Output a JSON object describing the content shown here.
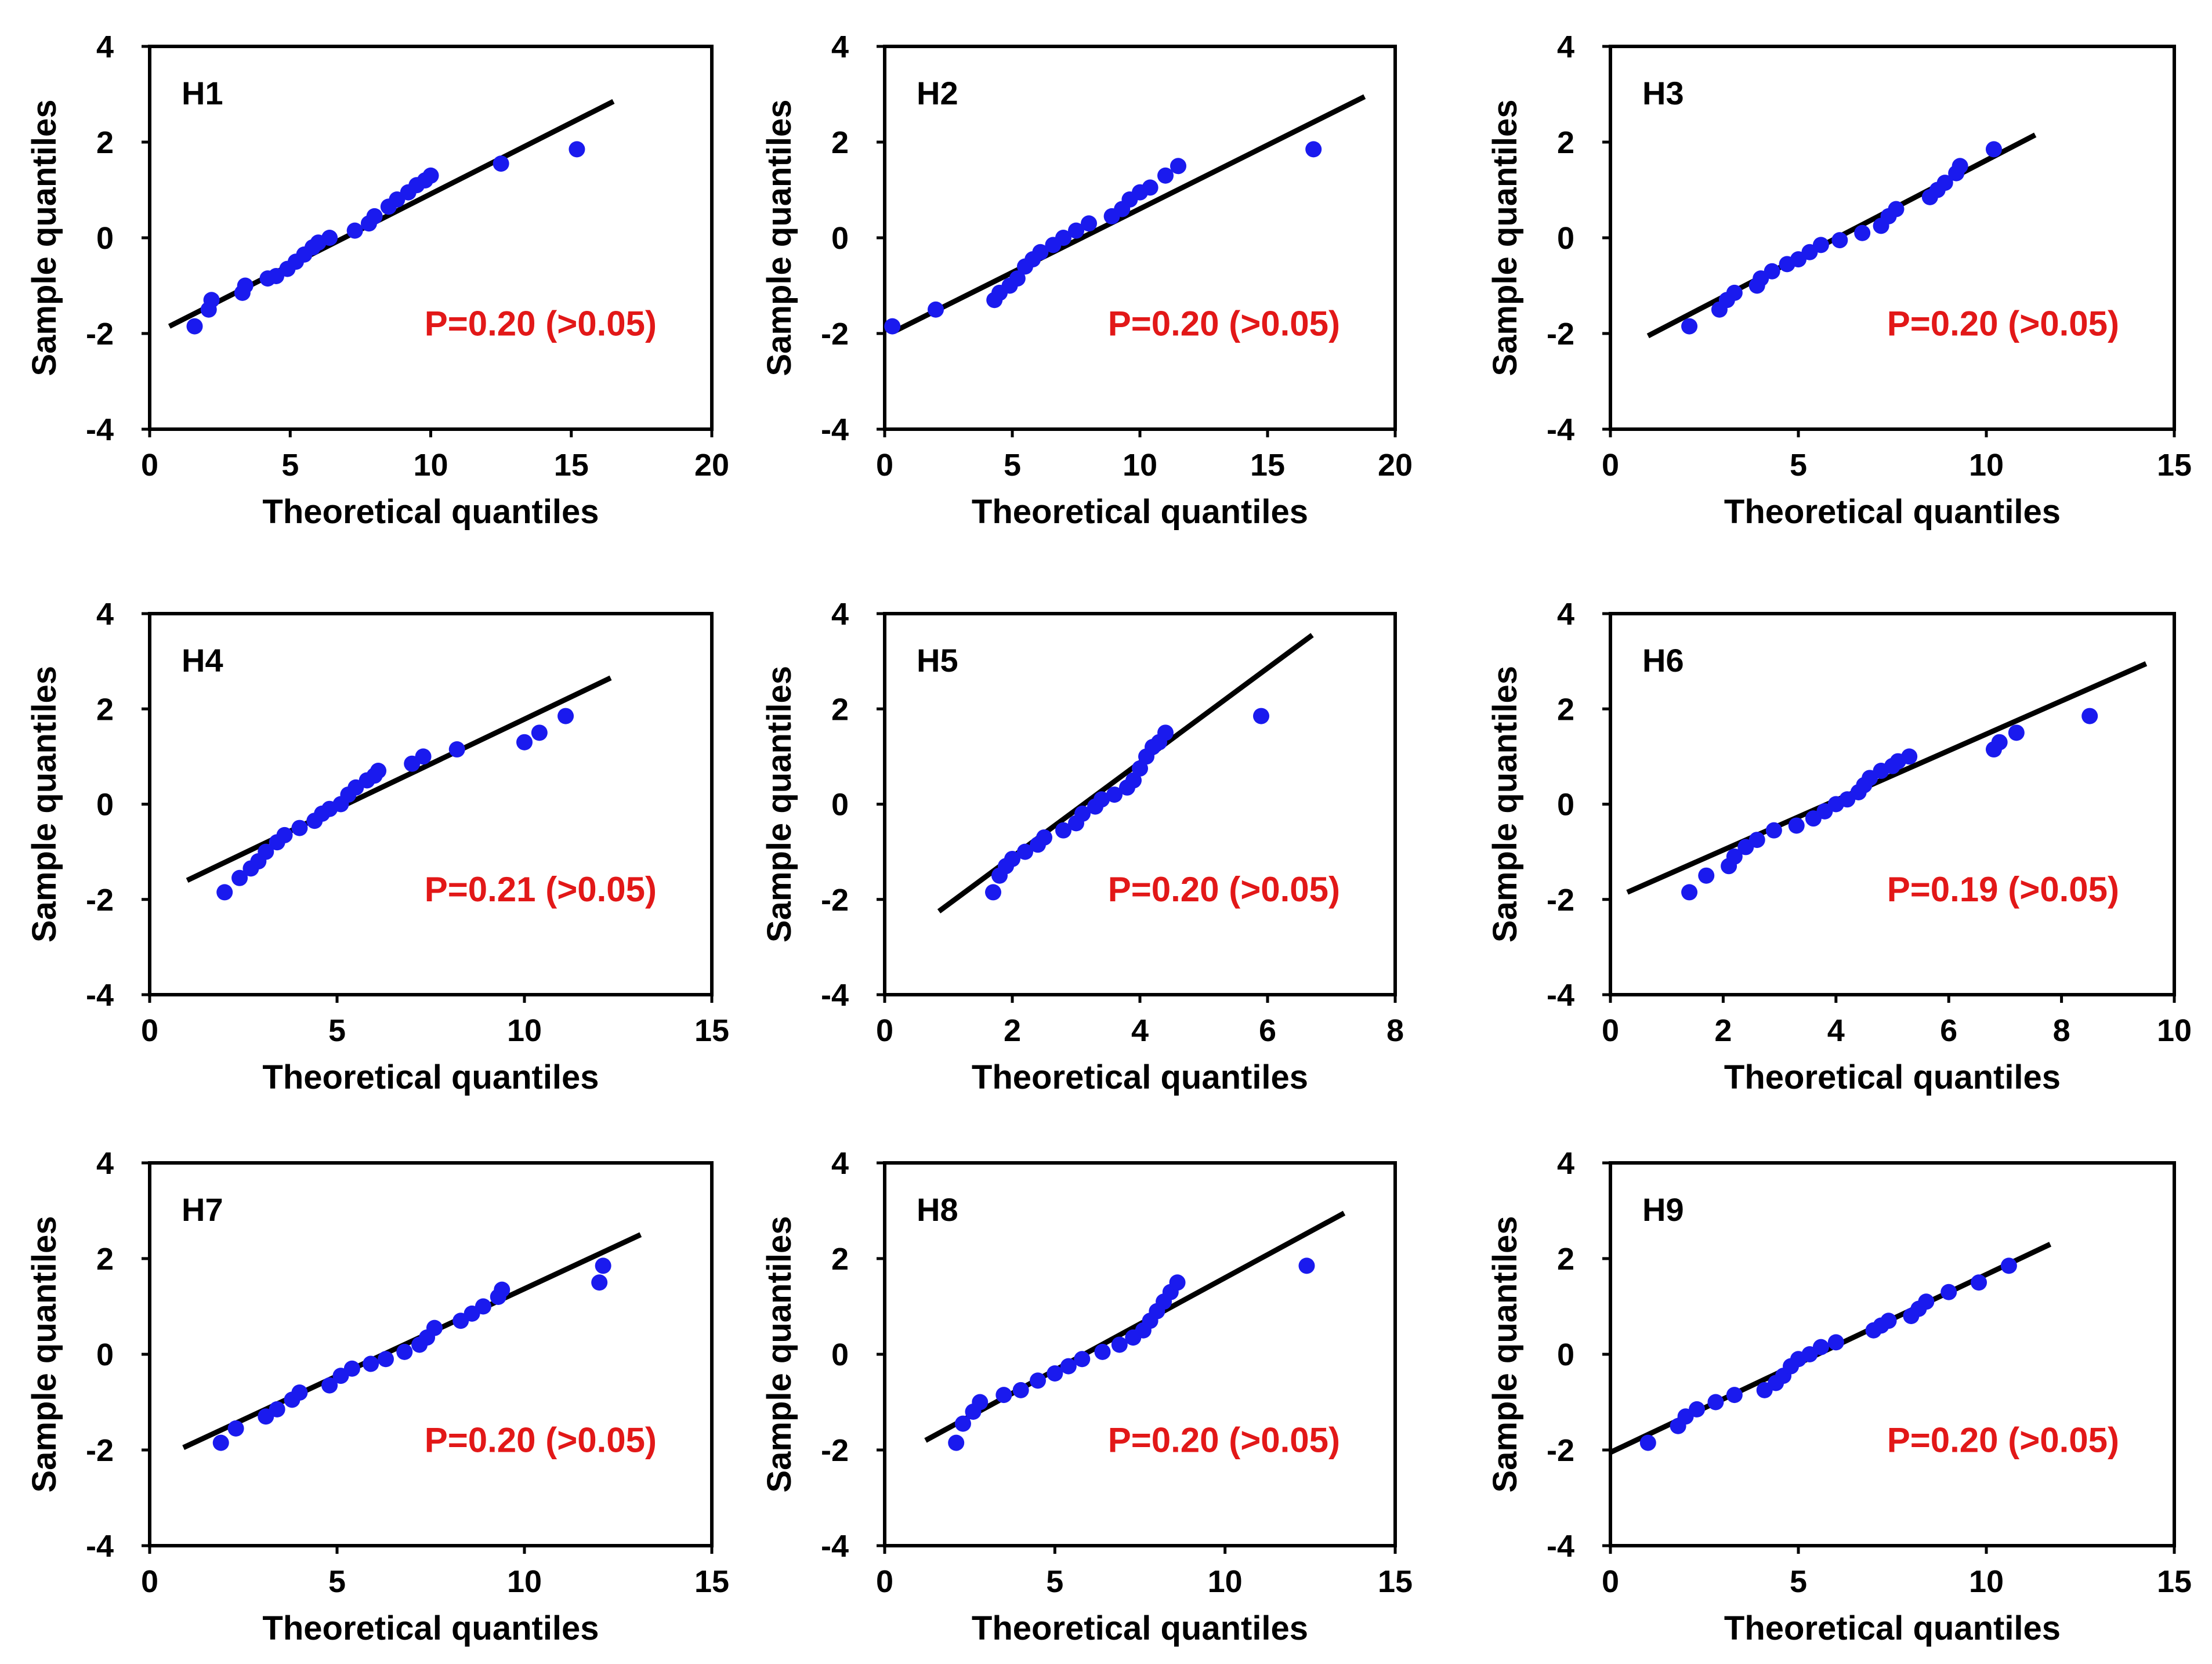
{
  "colors": {
    "point": "#1a1aee",
    "annotation": "#e21818",
    "line": "#000000"
  },
  "chart_data": [
    {
      "type": "scatter",
      "title": "H1",
      "xlabel": "Theoretical quantiles",
      "ylabel": "Sample quantiles",
      "xlim": [
        0,
        20
      ],
      "ylim": [
        -4,
        4
      ],
      "xticks": [
        "0",
        "5",
        "10",
        "15",
        "20"
      ],
      "yticks": [
        "-4",
        "-2",
        "0",
        "2",
        "4"
      ],
      "annotation": "P=0.20 (>0.05)",
      "line": [
        [
          0.7,
          -1.85
        ],
        [
          16.5,
          2.85
        ]
      ],
      "points": [
        [
          1.6,
          -1.85
        ],
        [
          2.1,
          -1.5
        ],
        [
          2.2,
          -1.3
        ],
        [
          3.3,
          -1.15
        ],
        [
          3.4,
          -1.0
        ],
        [
          4.2,
          -0.85
        ],
        [
          4.5,
          -0.8
        ],
        [
          4.9,
          -0.65
        ],
        [
          5.2,
          -0.5
        ],
        [
          5.5,
          -0.35
        ],
        [
          5.8,
          -0.2
        ],
        [
          6.0,
          -0.1
        ],
        [
          6.4,
          0.0
        ],
        [
          7.3,
          0.15
        ],
        [
          7.8,
          0.3
        ],
        [
          8.0,
          0.45
        ],
        [
          8.5,
          0.65
        ],
        [
          8.8,
          0.8
        ],
        [
          9.2,
          0.95
        ],
        [
          9.5,
          1.1
        ],
        [
          9.8,
          1.2
        ],
        [
          10.0,
          1.3
        ],
        [
          12.5,
          1.55
        ],
        [
          15.2,
          1.85
        ]
      ]
    },
    {
      "type": "scatter",
      "title": "H2",
      "xlabel": "Theoretical quantiles",
      "ylabel": "Sample quantiles",
      "xlim": [
        0,
        20
      ],
      "ylim": [
        -4,
        4
      ],
      "xticks": [
        "0",
        "5",
        "10",
        "15",
        "20"
      ],
      "yticks": [
        "-4",
        "-2",
        "0",
        "2",
        "4"
      ],
      "annotation": "P=0.20 (>0.05)",
      "line": [
        [
          0.4,
          -1.95
        ],
        [
          18.8,
          2.95
        ]
      ],
      "points": [
        [
          0.3,
          -1.85
        ],
        [
          2.0,
          -1.5
        ],
        [
          4.3,
          -1.3
        ],
        [
          4.5,
          -1.15
        ],
        [
          4.9,
          -1.0
        ],
        [
          5.2,
          -0.85
        ],
        [
          5.5,
          -0.6
        ],
        [
          5.8,
          -0.45
        ],
        [
          6.1,
          -0.3
        ],
        [
          6.6,
          -0.15
        ],
        [
          7.0,
          0.0
        ],
        [
          7.5,
          0.15
        ],
        [
          8.0,
          0.3
        ],
        [
          8.9,
          0.45
        ],
        [
          9.3,
          0.6
        ],
        [
          9.6,
          0.8
        ],
        [
          10.0,
          0.95
        ],
        [
          10.4,
          1.05
        ],
        [
          11.0,
          1.3
        ],
        [
          11.5,
          1.5
        ],
        [
          16.8,
          1.85
        ]
      ]
    },
    {
      "type": "scatter",
      "title": "H3",
      "xlabel": "Theoretical quantiles",
      "ylabel": "Sample quantiles",
      "xlim": [
        0,
        15
      ],
      "ylim": [
        -4,
        4
      ],
      "xticks": [
        "0",
        "5",
        "10",
        "15"
      ],
      "yticks": [
        "-4",
        "-2",
        "0",
        "2",
        "4"
      ],
      "annotation": "P=0.20 (>0.05)",
      "line": [
        [
          1.0,
          -2.05
        ],
        [
          11.3,
          2.15
        ]
      ],
      "points": [
        [
          2.1,
          -1.85
        ],
        [
          2.9,
          -1.5
        ],
        [
          3.1,
          -1.3
        ],
        [
          3.3,
          -1.15
        ],
        [
          3.9,
          -1.0
        ],
        [
          4.0,
          -0.85
        ],
        [
          4.3,
          -0.7
        ],
        [
          4.7,
          -0.55
        ],
        [
          5.0,
          -0.45
        ],
        [
          5.3,
          -0.3
        ],
        [
          5.6,
          -0.15
        ],
        [
          6.1,
          -0.05
        ],
        [
          6.7,
          0.1
        ],
        [
          7.2,
          0.25
        ],
        [
          7.4,
          0.45
        ],
        [
          7.6,
          0.6
        ],
        [
          8.5,
          0.85
        ],
        [
          8.7,
          1.0
        ],
        [
          8.9,
          1.15
        ],
        [
          9.2,
          1.35
        ],
        [
          9.3,
          1.5
        ],
        [
          10.2,
          1.85
        ]
      ]
    },
    {
      "type": "scatter",
      "title": "H4",
      "xlabel": "Theoretical quantiles",
      "ylabel": "Sample quantiles",
      "xlim": [
        0,
        15
      ],
      "ylim": [
        -4,
        4
      ],
      "xticks": [
        "0",
        "5",
        "10",
        "15"
      ],
      "yticks": [
        "-4",
        "-2",
        "0",
        "2",
        "4"
      ],
      "annotation": "P=0.21 (>0.05)",
      "line": [
        [
          1.0,
          -1.6
        ],
        [
          12.3,
          2.65
        ]
      ],
      "points": [
        [
          2.0,
          -1.85
        ],
        [
          2.4,
          -1.55
        ],
        [
          2.7,
          -1.35
        ],
        [
          2.9,
          -1.2
        ],
        [
          3.1,
          -1.0
        ],
        [
          3.4,
          -0.8
        ],
        [
          3.6,
          -0.65
        ],
        [
          4.0,
          -0.5
        ],
        [
          4.4,
          -0.35
        ],
        [
          4.6,
          -0.2
        ],
        [
          4.8,
          -0.1
        ],
        [
          5.1,
          0.0
        ],
        [
          5.3,
          0.2
        ],
        [
          5.5,
          0.35
        ],
        [
          5.8,
          0.5
        ],
        [
          6.0,
          0.6
        ],
        [
          6.1,
          0.7
        ],
        [
          7.0,
          0.85
        ],
        [
          7.3,
          1.0
        ],
        [
          8.2,
          1.15
        ],
        [
          10.0,
          1.3
        ],
        [
          10.4,
          1.5
        ],
        [
          11.1,
          1.85
        ]
      ]
    },
    {
      "type": "scatter",
      "title": "H5",
      "xlabel": "Theoretical quantiles",
      "ylabel": "Sample quantiles",
      "xlim": [
        0,
        8
      ],
      "ylim": [
        -4,
        4
      ],
      "xticks": [
        "0",
        "2",
        "4",
        "6",
        "8"
      ],
      "yticks": [
        "-4",
        "-2",
        "0",
        "2",
        "4"
      ],
      "annotation": "P=0.20 (>0.05)",
      "line": [
        [
          0.85,
          -2.25
        ],
        [
          6.7,
          3.55
        ]
      ],
      "points": [
        [
          1.7,
          -1.85
        ],
        [
          1.8,
          -1.5
        ],
        [
          1.9,
          -1.3
        ],
        [
          2.0,
          -1.15
        ],
        [
          2.2,
          -1.0
        ],
        [
          2.4,
          -0.85
        ],
        [
          2.5,
          -0.7
        ],
        [
          2.8,
          -0.55
        ],
        [
          3.0,
          -0.4
        ],
        [
          3.1,
          -0.2
        ],
        [
          3.3,
          -0.05
        ],
        [
          3.4,
          0.1
        ],
        [
          3.6,
          0.2
        ],
        [
          3.8,
          0.35
        ],
        [
          3.9,
          0.5
        ],
        [
          4.0,
          0.75
        ],
        [
          4.1,
          1.0
        ],
        [
          4.2,
          1.2
        ],
        [
          4.3,
          1.3
        ],
        [
          4.4,
          1.5
        ],
        [
          5.9,
          1.85
        ]
      ]
    },
    {
      "type": "scatter",
      "title": "H6",
      "xlabel": "Theoretical quantiles",
      "ylabel": "Sample quantiles",
      "xlim": [
        0,
        10
      ],
      "ylim": [
        -4,
        4
      ],
      "xticks": [
        "0",
        "2",
        "4",
        "6",
        "8",
        "10"
      ],
      "yticks": [
        "-4",
        "-2",
        "0",
        "2",
        "4"
      ],
      "annotation": "P=0.19 (>0.05)",
      "line": [
        [
          0.3,
          -1.85
        ],
        [
          9.5,
          2.95
        ]
      ],
      "points": [
        [
          1.4,
          -1.85
        ],
        [
          1.7,
          -1.5
        ],
        [
          2.1,
          -1.3
        ],
        [
          2.2,
          -1.1
        ],
        [
          2.4,
          -0.9
        ],
        [
          2.6,
          -0.75
        ],
        [
          2.9,
          -0.55
        ],
        [
          3.3,
          -0.45
        ],
        [
          3.6,
          -0.3
        ],
        [
          3.8,
          -0.15
        ],
        [
          4.0,
          0.0
        ],
        [
          4.2,
          0.1
        ],
        [
          4.4,
          0.25
        ],
        [
          4.5,
          0.4
        ],
        [
          4.6,
          0.55
        ],
        [
          4.8,
          0.7
        ],
        [
          5.0,
          0.8
        ],
        [
          5.1,
          0.9
        ],
        [
          5.3,
          1.0
        ],
        [
          6.8,
          1.15
        ],
        [
          6.9,
          1.3
        ],
        [
          7.2,
          1.5
        ],
        [
          8.5,
          1.85
        ]
      ]
    },
    {
      "type": "scatter",
      "title": "H7",
      "xlabel": "Theoretical quantiles",
      "ylabel": "Sample quantiles",
      "xlim": [
        0,
        15
      ],
      "ylim": [
        -4,
        4
      ],
      "xticks": [
        "0",
        "5",
        "10",
        "15"
      ],
      "yticks": [
        "-4",
        "-2",
        "0",
        "2",
        "4"
      ],
      "annotation": "P=0.20 (>0.05)",
      "line": [
        [
          0.9,
          -1.95
        ],
        [
          13.1,
          2.5
        ]
      ],
      "points": [
        [
          1.9,
          -1.85
        ],
        [
          2.3,
          -1.55
        ],
        [
          3.1,
          -1.3
        ],
        [
          3.4,
          -1.15
        ],
        [
          3.8,
          -0.95
        ],
        [
          4.0,
          -0.8
        ],
        [
          4.8,
          -0.65
        ],
        [
          5.1,
          -0.45
        ],
        [
          5.4,
          -0.3
        ],
        [
          5.9,
          -0.2
        ],
        [
          6.3,
          -0.1
        ],
        [
          6.8,
          0.05
        ],
        [
          7.2,
          0.2
        ],
        [
          7.4,
          0.35
        ],
        [
          7.6,
          0.55
        ],
        [
          8.3,
          0.7
        ],
        [
          8.6,
          0.85
        ],
        [
          8.9,
          1.0
        ],
        [
          9.3,
          1.2
        ],
        [
          9.4,
          1.35
        ],
        [
          12.0,
          1.5
        ],
        [
          12.1,
          1.85
        ]
      ]
    },
    {
      "type": "scatter",
      "title": "H8",
      "xlabel": "Theoretical quantiles",
      "ylabel": "Sample quantiles",
      "xlim": [
        0,
        15
      ],
      "ylim": [
        -4,
        4
      ],
      "xticks": [
        "0",
        "5",
        "10",
        "15"
      ],
      "yticks": [
        "-4",
        "-2",
        "0",
        "2",
        "4"
      ],
      "annotation": "P=0.20 (>0.05)",
      "line": [
        [
          1.2,
          -1.8
        ],
        [
          13.5,
          2.95
        ]
      ],
      "points": [
        [
          2.1,
          -1.85
        ],
        [
          2.3,
          -1.45
        ],
        [
          2.6,
          -1.2
        ],
        [
          2.8,
          -1.0
        ],
        [
          3.5,
          -0.85
        ],
        [
          4.0,
          -0.75
        ],
        [
          4.5,
          -0.55
        ],
        [
          5.0,
          -0.4
        ],
        [
          5.4,
          -0.25
        ],
        [
          5.8,
          -0.1
        ],
        [
          6.4,
          0.05
        ],
        [
          6.9,
          0.2
        ],
        [
          7.3,
          0.35
        ],
        [
          7.6,
          0.5
        ],
        [
          7.8,
          0.7
        ],
        [
          8.0,
          0.9
        ],
        [
          8.2,
          1.1
        ],
        [
          8.4,
          1.3
        ],
        [
          8.6,
          1.5
        ],
        [
          12.4,
          1.85
        ]
      ]
    },
    {
      "type": "scatter",
      "title": "H9",
      "xlabel": "Theoretical quantiles",
      "ylabel": "Sample quantiles",
      "xlim": [
        0,
        15
      ],
      "ylim": [
        -4,
        4
      ],
      "xticks": [
        "0",
        "5",
        "10",
        "15"
      ],
      "yticks": [
        "-4",
        "-2",
        "0",
        "2",
        "4"
      ],
      "annotation": "P=0.20 (>0.05)",
      "line": [
        [
          0.0,
          -2.05
        ],
        [
          11.7,
          2.3
        ]
      ],
      "points": [
        [
          1.0,
          -1.85
        ],
        [
          1.8,
          -1.5
        ],
        [
          2.0,
          -1.3
        ],
        [
          2.3,
          -1.15
        ],
        [
          2.8,
          -1.0
        ],
        [
          3.3,
          -0.85
        ],
        [
          4.1,
          -0.75
        ],
        [
          4.4,
          -0.6
        ],
        [
          4.6,
          -0.45
        ],
        [
          4.8,
          -0.25
        ],
        [
          5.0,
          -0.1
        ],
        [
          5.3,
          0.0
        ],
        [
          5.6,
          0.15
        ],
        [
          6.0,
          0.25
        ],
        [
          7.0,
          0.5
        ],
        [
          7.2,
          0.6
        ],
        [
          7.4,
          0.7
        ],
        [
          8.0,
          0.8
        ],
        [
          8.2,
          0.95
        ],
        [
          8.4,
          1.1
        ],
        [
          9.0,
          1.3
        ],
        [
          9.8,
          1.5
        ],
        [
          10.6,
          1.85
        ]
      ]
    }
  ]
}
